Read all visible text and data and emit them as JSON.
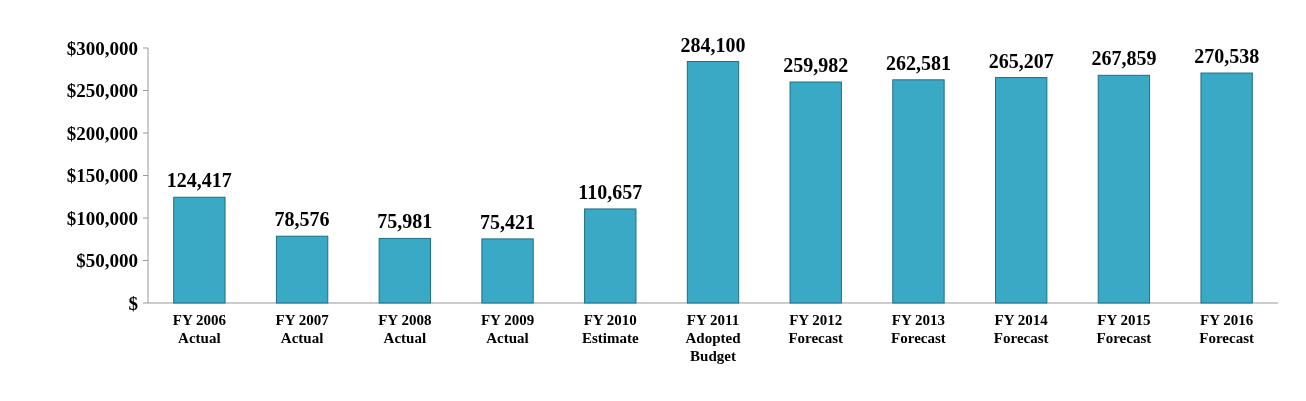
{
  "chart_data": {
    "type": "bar",
    "categories": [
      "FY 2006\nActual",
      "FY 2007\nActual",
      "FY 2008\nActual",
      "FY 2009\nActual",
      "FY 2010\nEstimate",
      "FY 2011\nAdopted\nBudget",
      "FY 2012\nForecast",
      "FY 2013\nForecast",
      "FY 2014\nForecast",
      "FY 2015\nForecast",
      "FY 2016\nForecast"
    ],
    "values": [
      124417,
      78576,
      75981,
      75421,
      110657,
      284100,
      259982,
      262581,
      265207,
      267859,
      270538
    ],
    "value_labels": [
      "124,417",
      "78,576",
      "75,981",
      "75,421",
      "110,657",
      "284,100",
      "259,982",
      "262,581",
      "265,207",
      "267,859",
      "270,538"
    ],
    "color": "#3aa9c6",
    "ylim": [
      0,
      300000
    ],
    "yticks": [
      {
        "value": 0,
        "label": "$"
      },
      {
        "value": 50000,
        "label": "$50,000"
      },
      {
        "value": 100000,
        "label": "$100,000"
      },
      {
        "value": 150000,
        "label": "$150,000"
      },
      {
        "value": 200000,
        "label": "$200,000"
      },
      {
        "value": 250000,
        "label": "$250,000"
      },
      {
        "value": 300000,
        "label": "$300,000"
      }
    ]
  }
}
